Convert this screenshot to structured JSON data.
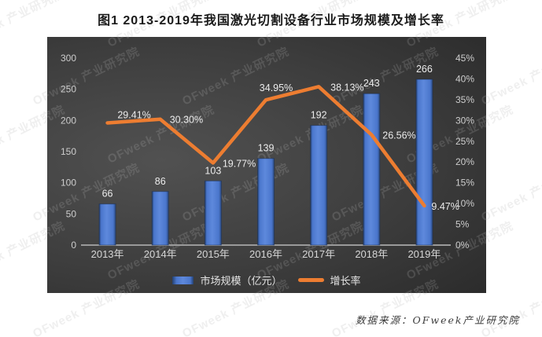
{
  "title": "图1 2013-2019年我国激光切割设备行业市场规模及增长率",
  "source_note": "数据来源：OFweek产业研究院",
  "watermark": {
    "text": "OFweek 产业研究院"
  },
  "colors": {
    "bar": "#4A76CC",
    "bar_highlight": "#5E89DC",
    "bar_edge": "#24406F",
    "line": "#ED7D31",
    "panel_center": "#515151",
    "panel_mid": "#3E3E3E",
    "panel_edge": "#232323",
    "axis_text": "#CDCDCD",
    "data_label_text": "#ECECEC",
    "category_text": "#D6D6D6",
    "axis_line": "#9A9A9A",
    "title_text": "#1A1A1A",
    "source_text": "#3C3C3C"
  },
  "chart_data": {
    "type": "bar+line combo",
    "title": "图1 2013-2019年我国激光切割设备行业市场规模及增长率",
    "categories": [
      "2013年",
      "2014年",
      "2015年",
      "2016年",
      "2017年",
      "2018年",
      "2019年"
    ],
    "series": [
      {
        "name": "市场规模（亿元）",
        "type": "bar",
        "axis": "left",
        "values": [
          66,
          86,
          103,
          139,
          192,
          243,
          266
        ],
        "labels": [
          "66",
          "86",
          "103",
          "139",
          "192",
          "243",
          "266"
        ]
      },
      {
        "name": "增长率",
        "type": "line",
        "axis": "right",
        "values": [
          29.41,
          30.3,
          19.77,
          34.95,
          38.13,
          26.56,
          9.47
        ],
        "labels": [
          "29.41%",
          "30.30%",
          "19.77%",
          "34.95%",
          "38.13%",
          "26.56%",
          "9.47%"
        ]
      }
    ],
    "left_axis": {
      "min": 0,
      "max": 300,
      "step": 50,
      "ticks": [
        "0",
        "50",
        "100",
        "150",
        "200",
        "250",
        "300"
      ]
    },
    "right_axis": {
      "min": 0,
      "max": 45,
      "step": 5,
      "ticks": [
        "0%",
        "5%",
        "10%",
        "15%",
        "20%",
        "25%",
        "30%",
        "35%",
        "40%",
        "45%"
      ]
    },
    "legend": [
      "市场规模（亿元）",
      "增长率"
    ],
    "legend_position": "bottom",
    "grid": false,
    "plot_background": "dark gradient"
  }
}
